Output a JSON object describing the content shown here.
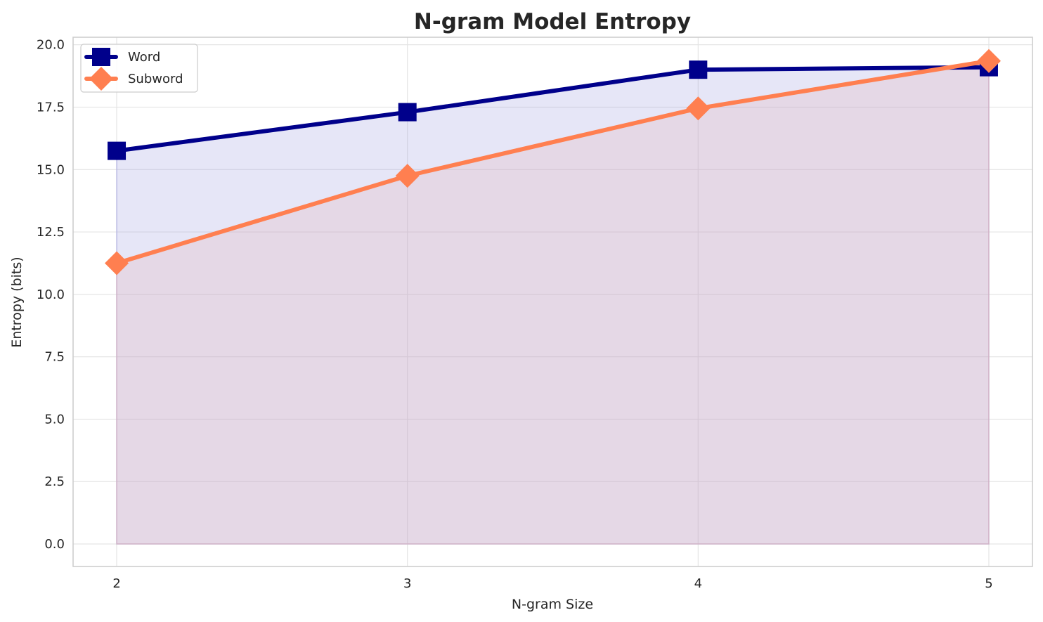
{
  "chart_data": {
    "type": "area",
    "title": "N-gram Model Entropy",
    "xlabel": "N-gram Size",
    "ylabel": "Entropy (bits)",
    "x": [
      2,
      3,
      4,
      5
    ],
    "x_tick_labels": [
      "2",
      "3",
      "4",
      "5"
    ],
    "xlim": [
      1.85,
      5.15
    ],
    "ylim": [
      -0.9,
      20.3
    ],
    "y_ticks": [
      0.0,
      2.5,
      5.0,
      7.5,
      10.0,
      12.5,
      15.0,
      17.5,
      20.0
    ],
    "y_tick_labels": [
      "0.0",
      "2.5",
      "5.0",
      "7.5",
      "10.0",
      "12.5",
      "15.0",
      "17.5",
      "20.0"
    ],
    "grid": true,
    "legend_position": "top-left",
    "series": [
      {
        "name": "Word",
        "values": [
          15.75,
          17.3,
          19.0,
          19.1
        ],
        "color": "#00008b",
        "fill_color": "#9a9ae0",
        "marker": "square"
      },
      {
        "name": "Subword",
        "values": [
          11.25,
          14.75,
          17.45,
          19.35
        ],
        "color": "#ff7f50",
        "fill_color": "#e3b0b5",
        "marker": "diamond"
      }
    ]
  }
}
